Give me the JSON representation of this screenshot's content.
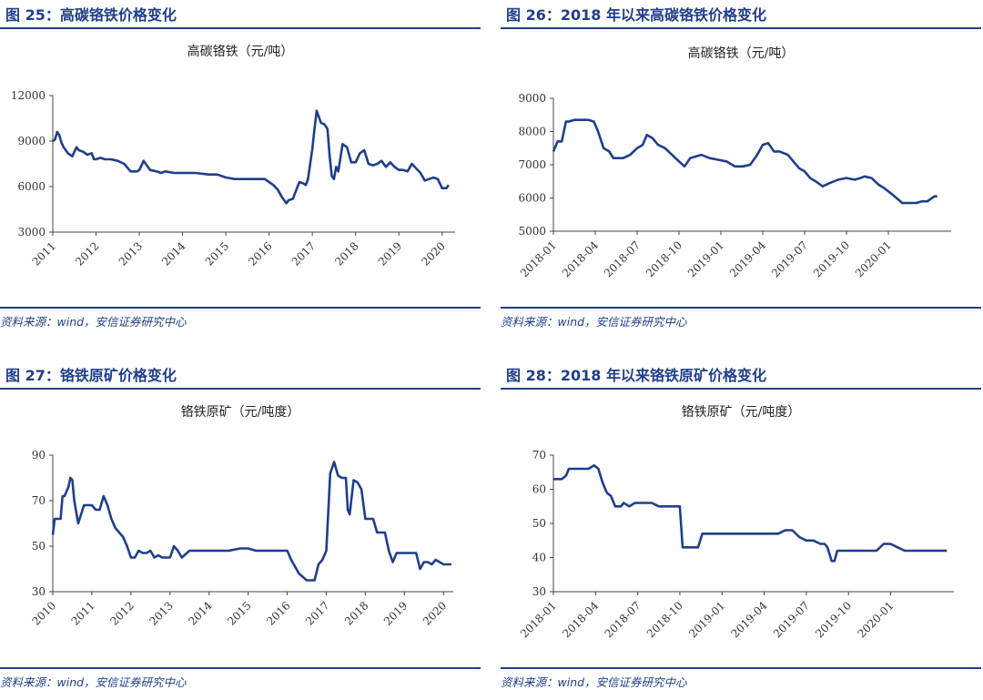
{
  "panels": [
    {
      "header": "图 25：高碳铬铁价格变化",
      "source": "资料来源：wind，安信证券研究中心",
      "chart_data": {
        "type": "line",
        "title": "高碳铬铁（元/吨）",
        "xlabel": "",
        "ylabel": "",
        "ylim": [
          3000,
          12000
        ],
        "yticks": [
          3000,
          6000,
          9000,
          12000
        ],
        "ytick_labels": [
          "3000",
          "6000",
          "9000",
          "12000"
        ],
        "xlim": [
          2011,
          2020.3
        ],
        "xticks": [
          2011,
          2012,
          2013,
          2014,
          2015,
          2016,
          2017,
          2018,
          2019,
          2020
        ],
        "xtick_labels": [
          "2011",
          "2012",
          "2013",
          "2014",
          "2015",
          "2016",
          "2017",
          "2018",
          "2019",
          "2020"
        ],
        "line_color": "#1f3e8c",
        "series": [
          {
            "x": [
              2011.0,
              2011.05,
              2011.1,
              2011.15,
              2011.2,
              2011.25,
              2011.35,
              2011.45,
              2011.55,
              2011.6,
              2011.7,
              2011.8,
              2011.9,
              2011.95,
              2012.0,
              2012.1,
              2012.2,
              2012.35,
              2012.5,
              2012.65,
              2012.8,
              2012.95,
              2013.0,
              2013.1,
              2013.25,
              2013.4,
              2013.5,
              2013.6,
              2013.8,
              2014.0,
              2014.3,
              2014.6,
              2014.8,
              2015.0,
              2015.2,
              2015.4,
              2015.6,
              2015.75,
              2015.9,
              2016.0,
              2016.1,
              2016.2,
              2016.3,
              2016.4,
              2016.45,
              2016.55,
              2016.7,
              2016.8,
              2016.85,
              2016.9,
              2017.0,
              2017.05,
              2017.1,
              2017.2,
              2017.28,
              2017.35,
              2017.4,
              2017.45,
              2017.5,
              2017.55,
              2017.6,
              2017.7,
              2017.8,
              2017.9,
              2018.0,
              2018.1,
              2018.2,
              2018.3,
              2018.4,
              2018.5,
              2018.6,
              2018.7,
              2018.8,
              2018.9,
              2019.0,
              2019.1,
              2019.2,
              2019.3,
              2019.4,
              2019.5,
              2019.6,
              2019.7,
              2019.8,
              2019.9,
              2020.0,
              2020.1,
              2020.15
            ],
            "y": [
              9000,
              9100,
              9600,
              9400,
              8900,
              8600,
              8200,
              8000,
              8600,
              8400,
              8300,
              8100,
              8200,
              7800,
              7800,
              7900,
              7800,
              7800,
              7700,
              7500,
              7000,
              7000,
              7100,
              7700,
              7100,
              7000,
              6900,
              7000,
              6900,
              6900,
              6900,
              6800,
              6800,
              6600,
              6500,
              6500,
              6500,
              6500,
              6500,
              6300,
              6100,
              5800,
              5300,
              4900,
              5100,
              5200,
              6300,
              6200,
              6100,
              6500,
              8500,
              9800,
              11000,
              10200,
              10100,
              9800,
              8000,
              6700,
              6500,
              7300,
              7000,
              8800,
              8600,
              7600,
              7600,
              8200,
              8400,
              7500,
              7400,
              7500,
              7700,
              7300,
              7600,
              7300,
              7100,
              7100,
              7000,
              7500,
              7200,
              6900,
              6400,
              6500,
              6600,
              6500,
              5900,
              5900,
              6100
            ]
          }
        ]
      }
    },
    {
      "header": "图 26：2018 年以来高碳铬铁价格变化",
      "source": "资料来源：wind，安信证券研究中心",
      "chart_data": {
        "type": "line",
        "title": "高碳铬铁（元/吨）",
        "xlabel": "",
        "ylabel": "",
        "ylim": [
          5000,
          9000
        ],
        "yticks": [
          5000,
          6000,
          7000,
          8000,
          9000
        ],
        "ytick_labels": [
          "5000",
          "6000",
          "7000",
          "8000",
          "9000"
        ],
        "xlim": [
          0,
          28.5
        ],
        "xticks": [
          0,
          3,
          6,
          9,
          12,
          15,
          18,
          21,
          24
        ],
        "xtick_labels": [
          "2018-01",
          "2018-04",
          "2018-07",
          "2018-10",
          "2019-01",
          "2019-04",
          "2019-07",
          "2019-10",
          "2020-01"
        ],
        "line_color": "#1f3e8c",
        "series": [
          {
            "x": [
              0.0,
              0.3,
              0.6,
              0.9,
              1.1,
              1.5,
              2.0,
              2.5,
              2.9,
              3.2,
              3.6,
              4.0,
              4.3,
              4.6,
              5.0,
              5.5,
              6.0,
              6.4,
              6.7,
              7.1,
              7.5,
              8.0,
              8.5,
              9.0,
              9.4,
              9.8,
              10.2,
              10.6,
              11.2,
              11.8,
              12.4,
              13.0,
              13.6,
              14.1,
              14.6,
              15.0,
              15.4,
              15.8,
              16.2,
              16.8,
              17.2,
              17.6,
              18.0,
              18.4,
              18.8,
              19.3,
              19.8,
              20.4,
              21.0,
              21.6,
              22.0,
              22.3,
              22.8,
              23.3,
              23.7,
              24.3,
              25.0,
              25.6,
              26.0,
              26.4,
              26.8,
              27.3,
              27.5
            ],
            "y": [
              7400,
              7700,
              7700,
              8300,
              8300,
              8350,
              8350,
              8350,
              8300,
              8000,
              7500,
              7400,
              7200,
              7200,
              7200,
              7300,
              7500,
              7600,
              7900,
              7800,
              7600,
              7500,
              7300,
              7100,
              6950,
              7200,
              7250,
              7300,
              7200,
              7150,
              7100,
              6950,
              6950,
              7000,
              7300,
              7600,
              7650,
              7400,
              7400,
              7300,
              7100,
              6900,
              6800,
              6600,
              6500,
              6350,
              6450,
              6550,
              6600,
              6550,
              6600,
              6650,
              6600,
              6400,
              6300,
              6100,
              5850,
              5850,
              5850,
              5900,
              5900,
              6050,
              6050
            ]
          }
        ]
      }
    },
    {
      "header": "图 27：铬铁原矿价格变化",
      "source": "资料来源：wind，安信证券研究中心",
      "chart_data": {
        "type": "line",
        "title": "铬铁原矿（元/吨度）",
        "xlabel": "",
        "ylabel": "",
        "ylim": [
          30,
          90
        ],
        "yticks": [
          30,
          50,
          70,
          90
        ],
        "ytick_labels": [
          "30",
          "50",
          "70",
          "90"
        ],
        "xlim": [
          2010,
          2020.25
        ],
        "xticks": [
          2010,
          2011,
          2012,
          2013,
          2014,
          2015,
          2016,
          2017,
          2018,
          2019,
          2020
        ],
        "xtick_labels": [
          "2010",
          "2011",
          "2012",
          "2013",
          "2014",
          "2015",
          "2016",
          "2017",
          "2018",
          "2019",
          "2020"
        ],
        "line_color": "#1f3e8c",
        "series": [
          {
            "x": [
              2010.0,
              2010.05,
              2010.1,
              2010.2,
              2010.25,
              2010.3,
              2010.4,
              2010.45,
              2010.5,
              2010.55,
              2010.65,
              2010.8,
              2010.9,
              2011.0,
              2011.1,
              2011.2,
              2011.3,
              2011.4,
              2011.5,
              2011.6,
              2011.7,
              2011.8,
              2011.9,
              2012.0,
              2012.1,
              2012.2,
              2012.3,
              2012.4,
              2012.5,
              2012.6,
              2012.7,
              2012.8,
              2013.0,
              2013.1,
              2013.2,
              2013.3,
              2013.5,
              2014.0,
              2014.5,
              2014.8,
              2015.0,
              2015.2,
              2015.5,
              2015.8,
              2016.0,
              2016.1,
              2016.3,
              2016.5,
              2016.7,
              2016.8,
              2016.9,
              2017.0,
              2017.1,
              2017.2,
              2017.3,
              2017.4,
              2017.5,
              2017.55,
              2017.6,
              2017.7,
              2017.8,
              2017.9,
              2018.0,
              2018.1,
              2018.2,
              2018.3,
              2018.4,
              2018.5,
              2018.6,
              2018.7,
              2018.8,
              2018.9,
              2019.0,
              2019.1,
              2019.2,
              2019.3,
              2019.4,
              2019.5,
              2019.6,
              2019.7,
              2019.8,
              2019.9,
              2020.0,
              2020.1,
              2020.2
            ],
            "y": [
              55,
              62,
              62,
              62,
              72,
              72,
              76,
              80,
              79,
              70,
              60,
              68,
              68,
              68,
              66,
              66,
              72,
              68,
              62,
              58,
              56,
              54,
              50,
              45,
              45,
              48,
              47,
              47,
              48,
              45,
              46,
              45,
              45,
              50,
              48,
              45,
              48,
              48,
              48,
              49,
              49,
              48,
              48,
              48,
              48,
              44,
              38,
              35,
              35,
              42,
              44,
              48,
              82,
              87,
              81,
              80,
              80,
              66,
              64,
              79,
              78,
              75,
              62,
              62,
              62,
              56,
              56,
              56,
              48,
              43,
              47,
              47,
              47,
              47,
              47,
              47,
              40,
              43,
              43,
              42,
              44,
              43,
              42,
              42,
              42
            ]
          }
        ]
      }
    },
    {
      "header": "图 28：2018 年以来铬铁原矿价格变化",
      "source": "资料来源：wind，安信证券研究中心",
      "chart_data": {
        "type": "line",
        "title": "铬铁原矿（元/吨度）",
        "xlabel": "",
        "ylabel": "",
        "ylim": [
          30,
          70
        ],
        "yticks": [
          30,
          40,
          50,
          60,
          70
        ],
        "ytick_labels": [
          "30",
          "40",
          "50",
          "60",
          "70"
        ],
        "xlim": [
          0,
          28.5
        ],
        "xticks": [
          0,
          3,
          6,
          9,
          12,
          15,
          18,
          21,
          24
        ],
        "xtick_labels": [
          "2018-01",
          "2018-04",
          "2018-07",
          "2018-10",
          "2019-01",
          "2019-04",
          "2019-07",
          "2019-10",
          "2020-01"
        ],
        "line_color": "#1f3e8c",
        "series": [
          {
            "x": [
              0.0,
              0.3,
              0.6,
              0.9,
              1.1,
              1.5,
              2.0,
              2.5,
              2.9,
              3.2,
              3.5,
              3.8,
              4.1,
              4.4,
              4.8,
              5.0,
              5.4,
              5.8,
              6.2,
              6.6,
              7.0,
              7.5,
              8.0,
              8.5,
              9.0,
              9.2,
              9.5,
              10.0,
              10.3,
              10.6,
              11.0,
              12.0,
              13.0,
              14.0,
              15.0,
              16.0,
              16.5,
              17.0,
              17.5,
              18.0,
              18.5,
              19.0,
              19.3,
              19.5,
              19.8,
              20.0,
              20.2,
              21.0,
              22.0,
              23.0,
              23.5,
              24.0,
              24.5,
              25.0,
              26.0,
              27.0,
              28.0
            ],
            "y": [
              63,
              63,
              63,
              64,
              66,
              66,
              66,
              66,
              67,
              66,
              62,
              59,
              58,
              55,
              55,
              56,
              55,
              56,
              56,
              56,
              56,
              55,
              55,
              55,
              55,
              43,
              43,
              43,
              43,
              47,
              47,
              47,
              47,
              47,
              47,
              47,
              48,
              48,
              46,
              45,
              45,
              44,
              44,
              43,
              39,
              39,
              42,
              42,
              42,
              42,
              44,
              44,
              43,
              42,
              42,
              42,
              42
            ]
          }
        ]
      }
    }
  ]
}
